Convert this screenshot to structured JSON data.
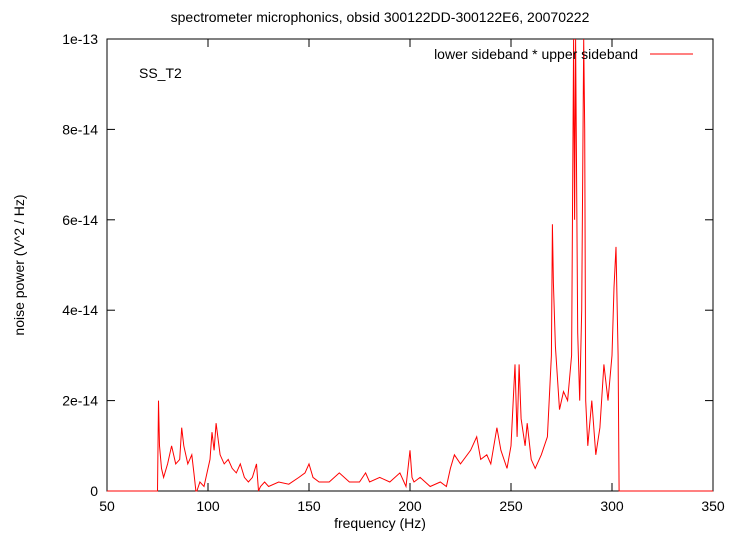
{
  "chart_data": {
    "type": "line",
    "title": "spectrometer microphonics, obsid 300122DD-300122E6, 20070222",
    "xlabel": "frequency (Hz)",
    "ylabel": "noise power (V^2 / Hz)",
    "annotation": "SS_T2",
    "xlim": [
      50,
      350
    ],
    "ylim": [
      0,
      1e-13
    ],
    "x_ticks": [
      50,
      100,
      150,
      200,
      250,
      300,
      350
    ],
    "x_tick_labels": [
      "50",
      "100",
      "150",
      "200",
      "250",
      "300",
      "350"
    ],
    "y_ticks": [
      0,
      2e-14,
      4e-14,
      6e-14,
      8e-14,
      1e-13
    ],
    "y_tick_labels": [
      "0",
      "2e-14",
      "4e-14",
      "6e-14",
      "8e-14",
      "1e-13"
    ],
    "grid": false,
    "legend_position": "top-right",
    "series": [
      {
        "name": "lower sideband * upper sideband",
        "color": "#ff0000",
        "x": [
          50,
          75,
          75.5,
          76,
          77,
          78,
          80,
          82,
          84,
          86,
          87,
          88,
          90,
          92,
          93,
          94,
          94.5,
          96,
          98,
          100,
          101,
          102,
          103,
          104,
          106,
          108,
          110,
          112,
          114,
          116,
          118,
          120,
          122,
          124,
          125,
          126,
          128,
          130,
          135,
          140,
          145,
          148,
          150,
          152,
          155,
          160,
          165,
          170,
          175,
          178,
          180,
          185,
          190,
          195,
          198,
          200,
          201,
          202,
          205,
          210,
          215,
          218,
          220,
          222,
          225,
          230,
          233,
          235,
          238,
          240,
          243,
          245,
          248,
          250,
          252,
          253,
          254,
          255,
          257,
          258,
          260,
          262,
          265,
          268,
          270,
          270.5,
          271,
          272,
          274,
          276,
          278,
          280,
          281,
          281.5,
          282,
          283,
          284,
          285,
          286,
          286.5,
          287,
          288,
          290,
          292,
          294,
          296,
          298,
          300,
          301,
          302,
          303,
          303.5,
          305,
          320,
          350
        ],
        "y": [
          0,
          0,
          2e-14,
          1e-14,
          5e-15,
          3e-15,
          6e-15,
          1e-14,
          6e-15,
          7e-15,
          1.4e-14,
          1e-14,
          6e-15,
          8e-15,
          4e-15,
          0,
          0,
          2e-15,
          1e-15,
          5e-15,
          7e-15,
          1.3e-14,
          9e-15,
          1.5e-14,
          8e-15,
          6e-15,
          7e-15,
          5e-15,
          4e-15,
          6e-15,
          3e-15,
          2e-15,
          3e-15,
          6e-15,
          0,
          1e-15,
          2e-15,
          1e-15,
          2e-15,
          1.5e-15,
          3e-15,
          4e-15,
          6e-15,
          3e-15,
          2e-15,
          2e-15,
          4e-15,
          2e-15,
          2e-15,
          4e-15,
          2e-15,
          3e-15,
          2e-15,
          4e-15,
          1e-15,
          9e-15,
          3e-15,
          2e-15,
          3e-15,
          1e-15,
          2e-15,
          1e-15,
          5e-15,
          8e-15,
          6e-15,
          9e-15,
          1.2e-14,
          7e-15,
          8e-15,
          6e-15,
          1.4e-14,
          9e-15,
          5e-15,
          1e-14,
          2.8e-14,
          1.2e-14,
          2.8e-14,
          1.6e-14,
          1e-14,
          1.5e-14,
          7e-15,
          5e-15,
          8e-15,
          1.2e-14,
          3e-14,
          5.9e-14,
          4.6e-14,
          3.2e-14,
          1.8e-14,
          2.2e-14,
          2e-14,
          3e-14,
          1e-13,
          6e-14,
          1e-13,
          3.5e-14,
          2e-14,
          4e-14,
          1e-13,
          8e-14,
          2e-14,
          1e-14,
          2e-14,
          8e-15,
          1.4e-14,
          2.8e-14,
          2e-14,
          3e-14,
          4.5e-14,
          5.4e-14,
          3e-14,
          0,
          0,
          0,
          0
        ]
      }
    ]
  }
}
